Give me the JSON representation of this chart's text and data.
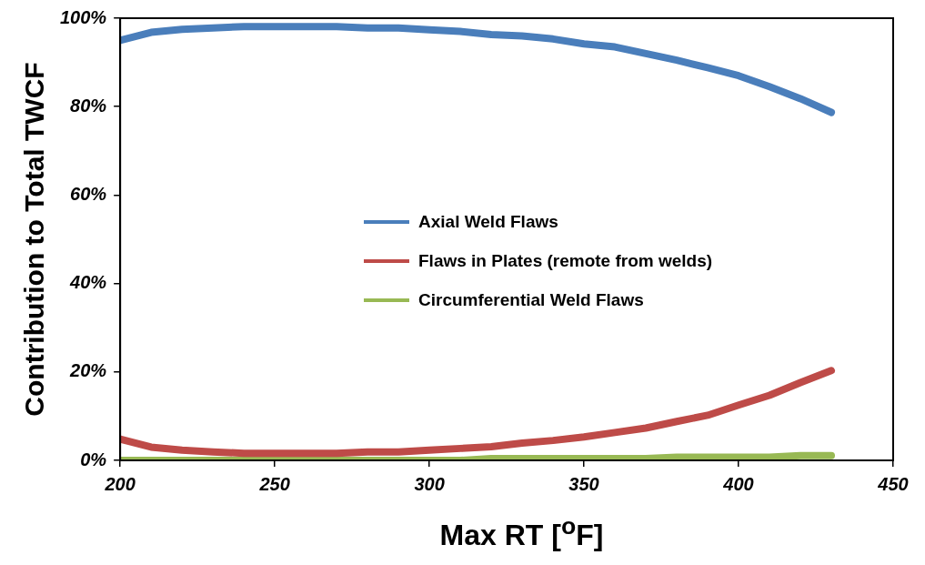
{
  "chart_data": {
    "type": "line",
    "xlabel": "Max RT  [$^{o}$F]",
    "ylabel": "Contribution to Total TWCF",
    "x": [
      200,
      210,
      220,
      230,
      240,
      250,
      260,
      270,
      280,
      290,
      300,
      310,
      320,
      330,
      340,
      350,
      360,
      370,
      380,
      390,
      400,
      410,
      420,
      430
    ],
    "series": [
      {
        "name": "Axial Weld Flaws",
        "color": "#4a7ebb",
        "values": [
          95,
          96.8,
          97.5,
          97.8,
          98.1,
          98.1,
          98.1,
          98.1,
          97.8,
          97.8,
          97.4,
          97,
          96.3,
          96,
          95.3,
          94.2,
          93.5,
          92,
          90.5,
          88.8,
          87,
          84.5,
          81.8,
          78.7
        ]
      },
      {
        "name": "Flaws in Plates (remote from welds)",
        "color": "#be4b48",
        "values": [
          4.8,
          3,
          2.3,
          1.9,
          1.6,
          1.6,
          1.6,
          1.6,
          1.9,
          1.9,
          2.3,
          2.7,
          3.1,
          3.9,
          4.5,
          5.3,
          6.3,
          7.3,
          8.8,
          10.2,
          12.5,
          14.7,
          17.6,
          20.3
        ]
      },
      {
        "name": "Circumferential Weld Flaws",
        "color": "#98b954",
        "values": [
          0,
          0,
          0,
          0,
          0,
          0,
          0,
          0,
          0,
          0,
          0,
          0,
          0.4,
          0.4,
          0.4,
          0.4,
          0.4,
          0.4,
          0.7,
          0.7,
          0.7,
          0.7,
          1.1,
          1.1
        ]
      }
    ],
    "xlim": [
      200,
      450
    ],
    "xticks": [
      200,
      250,
      300,
      350,
      400,
      450
    ],
    "ylim": [
      0,
      100
    ],
    "yticks": [
      {
        "value": 0,
        "label": "0%"
      },
      {
        "value": 20,
        "label": "20%"
      },
      {
        "value": 40,
        "label": "40%"
      },
      {
        "value": 60,
        "label": "60%"
      },
      {
        "value": 80,
        "label": "80%"
      },
      {
        "value": 100,
        "label": "100%"
      }
    ],
    "grid": false,
    "legend": "center",
    "marker": "none",
    "line_style": "solid"
  }
}
